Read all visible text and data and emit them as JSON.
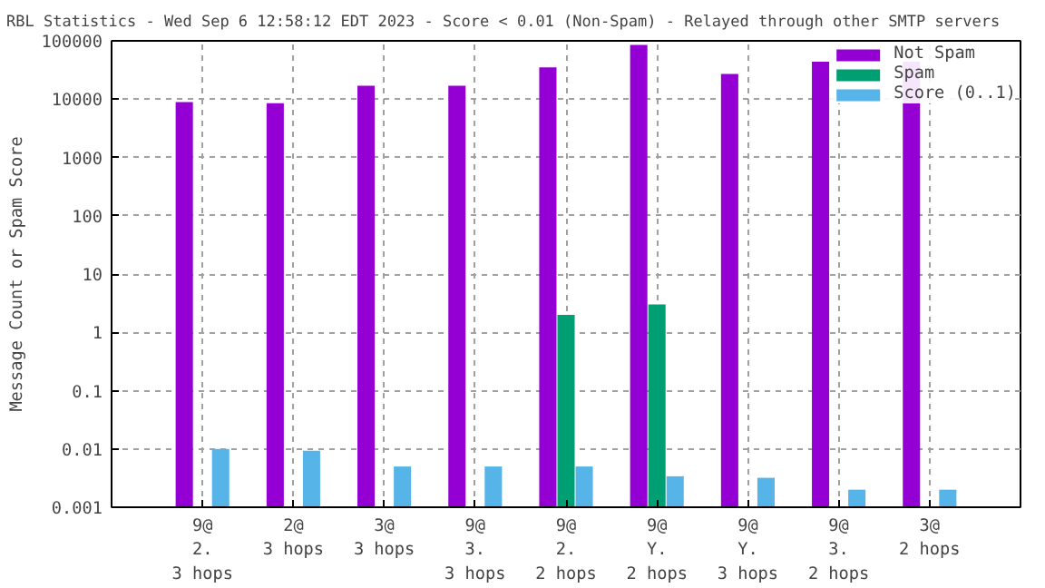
{
  "chart_data": {
    "type": "bar",
    "title": "RBL Statistics - Wed Sep  6 12:58:12 EDT 2023 - Score < 0.01 (Non-Spam) - Relayed through other SMTP servers",
    "ylabel": "Message Count or Spam Score",
    "categories": [
      "9@\n2.\n3 hops",
      "2@\n3 hops",
      "3@\n3 hops",
      "9@\n3.\n3 hops",
      "9@\n2.\n2 hops",
      "9@\nY.\n2 hops",
      "9@\nY.\n3 hops",
      "9@\n3.\n2 hops",
      "3@\n2 hops"
    ],
    "series": [
      {
        "name": "Not Spam",
        "color": "#9400d3",
        "values": [
          8900,
          8500,
          17000,
          17000,
          35000,
          85000,
          27000,
          44000,
          44000
        ]
      },
      {
        "name": "Spam",
        "color": "#009e73",
        "values": [
          null,
          null,
          null,
          null,
          2,
          3,
          null,
          null,
          null
        ]
      },
      {
        "name": "Score (0..1)",
        "color": "#56b4e9",
        "values": [
          0.01,
          0.0093,
          0.005,
          0.005,
          0.005,
          0.0034,
          0.0032,
          0.002,
          0.002
        ]
      }
    ],
    "log": true,
    "ylim": [
      0.001,
      100000
    ],
    "yticks": [
      0.001,
      0.01,
      0.1,
      1,
      10,
      100,
      1000,
      10000,
      100000
    ],
    "grid": true,
    "legend": "top right"
  }
}
